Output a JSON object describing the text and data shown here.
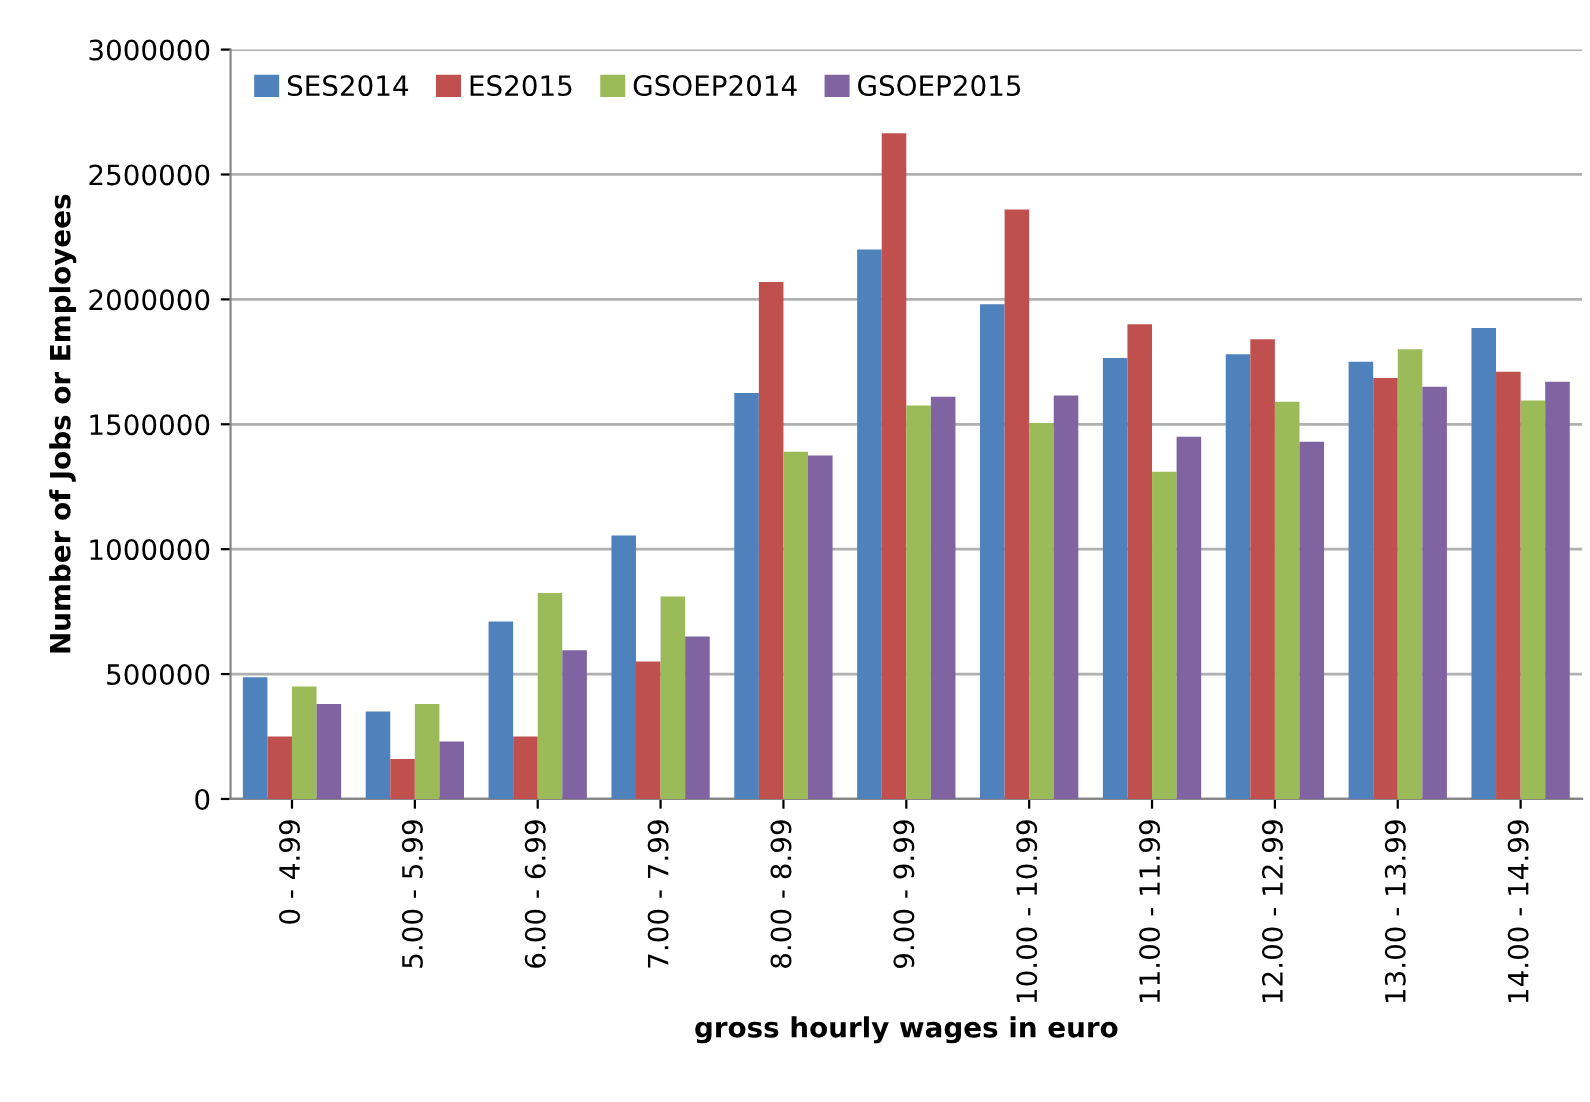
{
  "chart_data": {
    "type": "bar",
    "xlabel": "gross hourly wages in euro",
    "ylabel": "Number of Jobs or Employees",
    "categories": [
      "0 - 4.99",
      "5.00 - 5.99",
      "6.00 - 6.99",
      "7.00 - 7.99",
      "8.00 - 8.99",
      "9.00 - 9.99",
      "10.00 - 10.99",
      "11.00 - 11.99",
      "12.00 - 12.99",
      "13.00 - 13.99",
      "14.00 - 14.99"
    ],
    "series": [
      {
        "name": "SES2014",
        "color": "#4f81bd",
        "values": [
          487000,
          350000,
          710000,
          1055000,
          1625000,
          2200000,
          1980000,
          1765000,
          1780000,
          1750000,
          1885000
        ]
      },
      {
        "name": "ES2015",
        "color": "#c0504d",
        "values": [
          250000,
          160000,
          250000,
          550000,
          2070000,
          2665000,
          2360000,
          1900000,
          1840000,
          1685000,
          1710000
        ]
      },
      {
        "name": "GSOEP2014",
        "color": "#9bbb59",
        "values": [
          450000,
          380000,
          825000,
          810000,
          1390000,
          1575000,
          1505000,
          1310000,
          1590000,
          1800000,
          1595000
        ]
      },
      {
        "name": "GSOEP2015",
        "color": "#8064a2",
        "values": [
          380000,
          230000,
          595000,
          650000,
          1375000,
          1610000,
          1615000,
          1450000,
          1430000,
          1650000,
          1670000
        ]
      }
    ],
    "ylim": [
      0,
      3000000
    ],
    "yticks": [
      0,
      500000,
      1000000,
      1500000,
      2000000,
      2500000,
      3000000
    ],
    "grid": "y",
    "legend": "top left"
  }
}
